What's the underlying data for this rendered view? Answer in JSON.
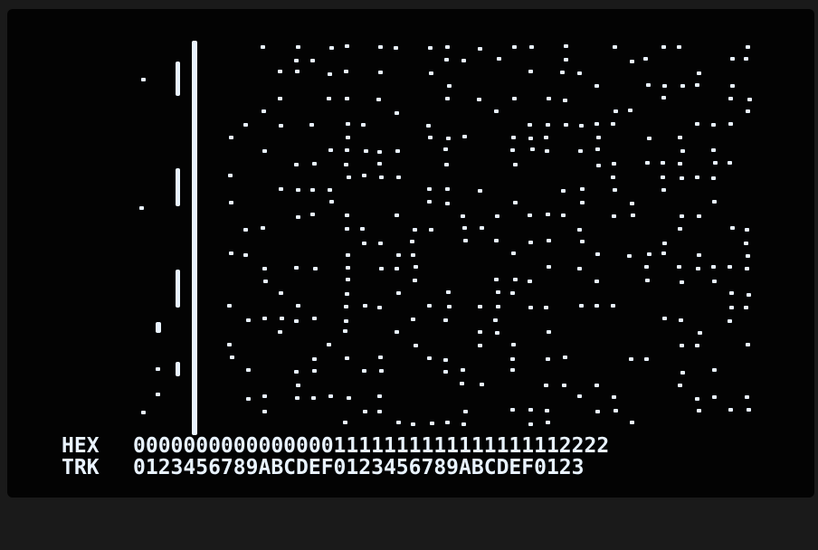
{
  "screen": {
    "hex_label": "HEX",
    "trk_label": "TRK",
    "hex_row": "00000000000000001111111111111111112222",
    "trk_row": "0123456789ABCDEF0123456789ABCDEF0123"
  },
  "colors": {
    "phosphor": "#e9f3ff",
    "background": "#030303"
  }
}
